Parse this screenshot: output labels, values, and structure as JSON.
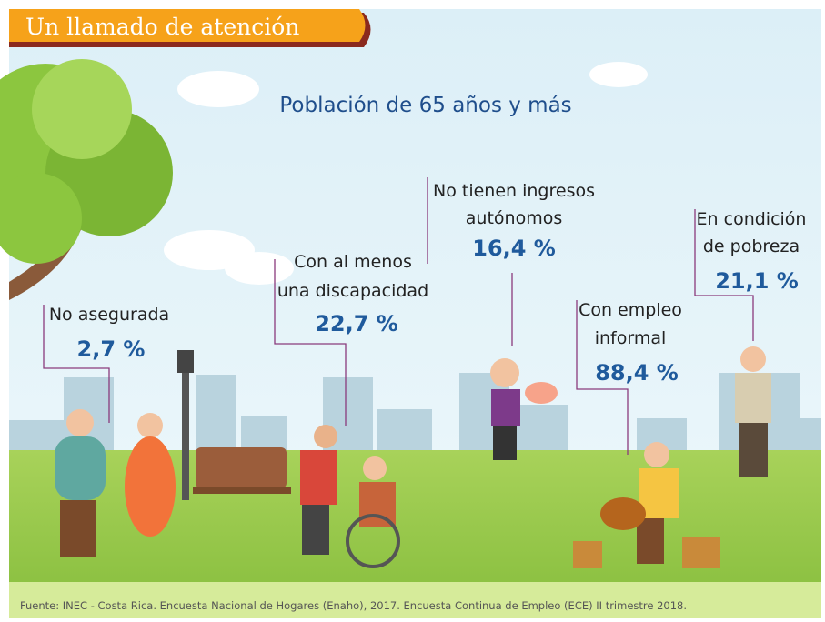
{
  "header": {
    "title": "Un llamado de atención"
  },
  "subtitle": "Población de 65 años y más",
  "stats": [
    {
      "label": [
        "No asegurada"
      ],
      "value": "2,7 %"
    },
    {
      "label": [
        "Con al menos",
        "una discapacidad"
      ],
      "value": "22,7 %"
    },
    {
      "label": [
        "No tienen ingresos",
        "autónomos"
      ],
      "value": "16,4 %"
    },
    {
      "label": [
        "Con empleo",
        "informal"
      ],
      "value": "88,4 %"
    },
    {
      "label": [
        "En condición",
        "de pobreza"
      ],
      "value": "21,1 %"
    }
  ],
  "source": "Fuente: INEC - Costa Rica. Encuesta Nacional de Hogares (Enaho), 2017. Encuesta Continua de Empleo (ECE) II trimestre 2018."
}
